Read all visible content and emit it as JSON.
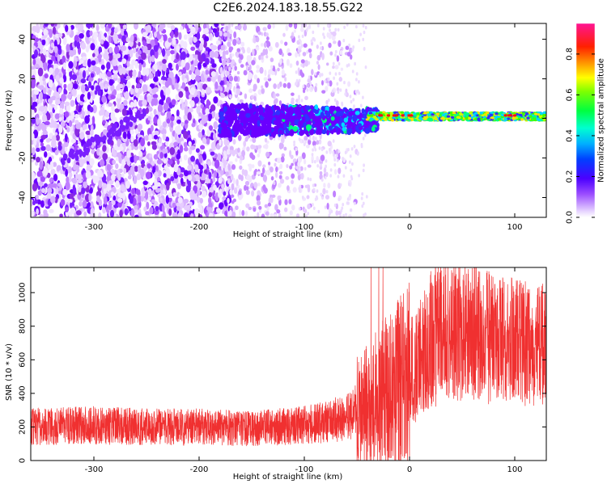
{
  "title": "C2E6.2024.183.18.55.G22",
  "colors": {
    "snr_line": "#f03030",
    "frame": "#000000",
    "spectrogram_ramp": [
      "#ffffff",
      "#e6ccff",
      "#c080ff",
      "#8a2be2",
      "#6a00ff",
      "#3030ff",
      "#00d8ff",
      "#00ff80",
      "#40ff00",
      "#c8ff00",
      "#ffe000",
      "#ff8000",
      "#ff1010",
      "#ff1493"
    ]
  },
  "chart_data": [
    {
      "type": "heatmap",
      "xlabel": "Height of straight line (km)",
      "ylabel": "Frequency (Hz)",
      "xlim": [
        -360,
        130
      ],
      "ylim": [
        -50,
        48
      ],
      "x_ticks": [
        -300,
        -200,
        -100,
        0,
        100
      ],
      "y_ticks": [
        -40,
        -20,
        0,
        20,
        40
      ],
      "colorbar": {
        "label": "Normalized spectral amplitude",
        "range": [
          0.0,
          0.95
        ],
        "ticks": [
          "0.0",
          "0.2",
          "0.4",
          "0.6",
          "0.8"
        ],
        "tick_values": [
          0.0,
          0.2,
          0.4,
          0.6,
          0.8
        ]
      },
      "regions": [
        {
          "x_range": [
            -360,
            -180
          ],
          "freq_range": [
            -50,
            48
          ],
          "amplitude": 0.08,
          "description": "broadband noise"
        },
        {
          "x_range": [
            -180,
            -30
          ],
          "freq_range": [
            -10,
            8
          ],
          "amplitude": 0.3,
          "description": "signal emerging near 0 Hz"
        },
        {
          "x_range": [
            -30,
            130
          ],
          "freq_range": [
            -2,
            3
          ],
          "amplitude": 0.6,
          "description": "narrow carrier line"
        }
      ],
      "peak_amplitude_x": [
        -20,
        0,
        100
      ]
    },
    {
      "type": "line",
      "xlabel": "Height of straight line (km)",
      "ylabel": "SNR (10 * v/v)",
      "xlim": [
        -360,
        130
      ],
      "ylim": [
        0,
        1150
      ],
      "x_ticks": [
        -300,
        -200,
        -100,
        0,
        100
      ],
      "y_ticks": [
        0,
        200,
        400,
        600,
        800,
        1000
      ],
      "series": [
        {
          "x": [
            -360,
            -300,
            -250,
            -200,
            -150,
            -100,
            -80,
            -60,
            -40,
            -30,
            -20,
            -10,
            0,
            10,
            20,
            30,
            40,
            50,
            60,
            80,
            100,
            120,
            130
          ],
          "y": [
            200,
            210,
            200,
            200,
            190,
            210,
            230,
            260,
            330,
            380,
            420,
            460,
            520,
            600,
            720,
            820,
            790,
            780,
            760,
            730,
            700,
            680,
            680
          ]
        }
      ]
    }
  ]
}
